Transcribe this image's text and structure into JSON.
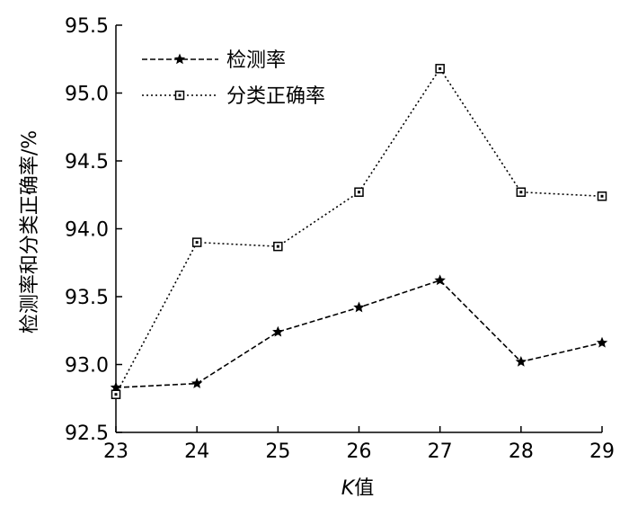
{
  "chart_data": {
    "type": "line",
    "x": [
      23,
      24,
      25,
      26,
      27,
      28,
      29
    ],
    "x_tick_labels": [
      "23",
      "24",
      "25",
      "26",
      "27",
      "28",
      "29"
    ],
    "xlabel_italic": "K",
    "xlabel_rest": "值",
    "ylabel": "检测率和分类正确率/%",
    "ylim": [
      92.5,
      95.5
    ],
    "y_ticks": [
      92.5,
      93.0,
      93.5,
      94.0,
      94.5,
      95.0,
      95.5
    ],
    "y_tick_labels": [
      "92.5",
      "93.0",
      "93.5",
      "94.0",
      "94.5",
      "95.0",
      "95.5"
    ],
    "grid": false,
    "legend_position": "top-left",
    "series": [
      {
        "name": "检测率",
        "marker": "star",
        "line_style": "dashed",
        "color": "#000000",
        "values": [
          92.83,
          92.86,
          93.24,
          93.42,
          93.62,
          93.02,
          93.16
        ]
      },
      {
        "name": "分类正确率",
        "marker": "square",
        "line_style": "dotted",
        "color": "#000000",
        "values": [
          92.78,
          93.9,
          93.87,
          94.27,
          95.18,
          94.27,
          94.24
        ]
      }
    ]
  }
}
